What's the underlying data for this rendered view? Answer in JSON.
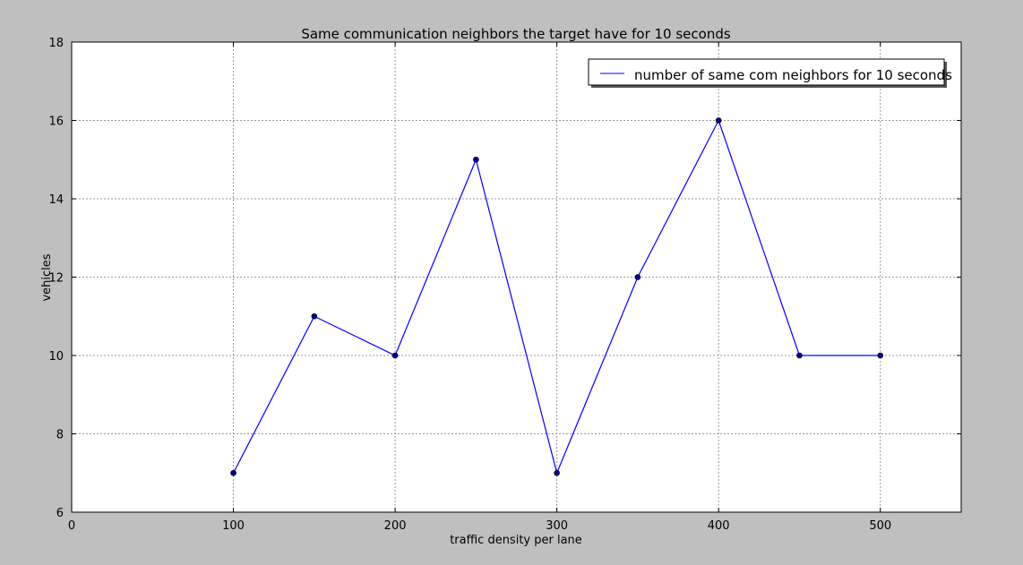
{
  "chart_data": {
    "type": "line",
    "title": "Same communication neighbors the target have for 10 seconds",
    "xlabel": "traffic density per lane",
    "ylabel": "vehicles",
    "xlim": [
      0,
      550
    ],
    "ylim": [
      6,
      18
    ],
    "xticks": [
      0,
      100,
      200,
      300,
      400,
      500
    ],
    "yticks": [
      6,
      8,
      10,
      12,
      14,
      16,
      18
    ],
    "grid": true,
    "legend_position": "top-right",
    "series": [
      {
        "name": "number of same com neighbors for 10 seconds",
        "color": "#0000ff",
        "marker_color": "#00008b",
        "x": [
          100,
          150,
          200,
          250,
          300,
          350,
          400,
          450,
          500
        ],
        "y": [
          7,
          11,
          10,
          15,
          7,
          12,
          16,
          10,
          10
        ]
      }
    ]
  }
}
